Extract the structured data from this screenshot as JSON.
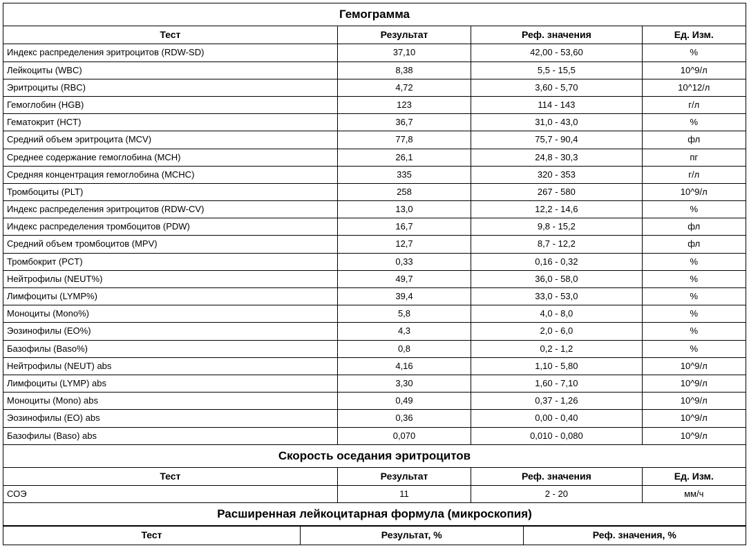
{
  "section1": {
    "title": "Гемограмма",
    "headers": {
      "test": "Тест",
      "result": "Результат",
      "ref": "Реф. значения",
      "unit": "Ед. Изм."
    },
    "rows": [
      {
        "test": "Индекс распределения эритроцитов (RDW-SD)",
        "result": "37,10",
        "ref": "42,00 - 53,60",
        "unit": "%"
      },
      {
        "test": "Лейкоциты (WBC)",
        "result": "8,38",
        "ref": "5,5 - 15,5",
        "unit": "10^9/л"
      },
      {
        "test": "Эритроциты (RBC)",
        "result": "4,72",
        "ref": "3,60 - 5,70",
        "unit": "10^12/л"
      },
      {
        "test": "Гемоглобин (HGB)",
        "result": "123",
        "ref": "114 - 143",
        "unit": "г/л"
      },
      {
        "test": "Гематокрит (HCT)",
        "result": "36,7",
        "ref": "31,0 - 43,0",
        "unit": "%"
      },
      {
        "test": "Средний объем эритроцита (MCV)",
        "result": "77,8",
        "ref": "75,7 - 90,4",
        "unit": "фл"
      },
      {
        "test": "Среднее содержание гемоглобина (MCH)",
        "result": "26,1",
        "ref": "24,8 - 30,3",
        "unit": "пг"
      },
      {
        "test": "Средняя концентрация гемоглобина (MCHC)",
        "result": "335",
        "ref": "320 - 353",
        "unit": "г/л"
      },
      {
        "test": "Тромбоциты (PLT)",
        "result": "258",
        "ref": "267 - 580",
        "unit": "10^9/л"
      },
      {
        "test": "Индекс распределения эритроцитов (RDW-CV)",
        "result": "13,0",
        "ref": "12,2 - 14,6",
        "unit": "%"
      },
      {
        "test": "Индекс распределения тромбоцитов (PDW)",
        "result": "16,7",
        "ref": "9,8 - 15,2",
        "unit": "фл"
      },
      {
        "test": "Средний объем тромбоцитов (MPV)",
        "result": "12,7",
        "ref": "8,7 - 12,2",
        "unit": "фл"
      },
      {
        "test": "Тромбокрит (PCT)",
        "result": "0,33",
        "ref": "0,16 - 0,32",
        "unit": "%"
      },
      {
        "test": "Нейтрофилы (NEUT%)",
        "result": "49,7",
        "ref": "36,0 - 58,0",
        "unit": "%"
      },
      {
        "test": "Лимфоциты (LYMP%)",
        "result": "39,4",
        "ref": "33,0 - 53,0",
        "unit": "%"
      },
      {
        "test": "Моноциты (Mono%)",
        "result": "5,8",
        "ref": "4,0 - 8,0",
        "unit": "%"
      },
      {
        "test": "Эозинофилы (EO%)",
        "result": "4,3",
        "ref": "2,0 - 6,0",
        "unit": "%"
      },
      {
        "test": "Базофилы (Baso%)",
        "result": "0,8",
        "ref": "0,2 - 1,2",
        "unit": "%"
      },
      {
        "test": "Нейтрофилы (NEUT) abs",
        "result": "4,16",
        "ref": "1,10 - 5,80",
        "unit": "10^9/л"
      },
      {
        "test": "Лимфоциты (LYMP) abs",
        "result": "3,30",
        "ref": "1,60 - 7,10",
        "unit": "10^9/л"
      },
      {
        "test": "Моноциты (Mono) abs",
        "result": "0,49",
        "ref": "0,37 - 1,26",
        "unit": "10^9/л"
      },
      {
        "test": "Эозинофилы (EO) abs",
        "result": "0,36",
        "ref": "0,00 - 0,40",
        "unit": "10^9/л"
      },
      {
        "test": "Базофилы (Baso) abs",
        "result": "0,070",
        "ref": "0,010 - 0,080",
        "unit": "10^9/л"
      }
    ]
  },
  "section2": {
    "title": "Скорость оседания эритроцитов",
    "headers": {
      "test": "Тест",
      "result": "Результат",
      "ref": "Реф. значения",
      "unit": "Ед. Изм."
    },
    "rows": [
      {
        "test": "СОЭ",
        "result": "11",
        "ref": "2 - 20",
        "unit": "мм/ч"
      }
    ]
  },
  "section3": {
    "title": "Расширенная лейкоцитарная формула (микроскопия)",
    "headers": {
      "test": "Тест",
      "result": "Результат, %",
      "ref": "Реф. значения, %"
    }
  },
  "style": {
    "border_color": "#000000",
    "background_color": "#ffffff",
    "text_color": "#000000",
    "font_family": "Arial, sans-serif",
    "body_fontsize": 13,
    "title_fontsize": 17,
    "header_fontsize": 14
  }
}
